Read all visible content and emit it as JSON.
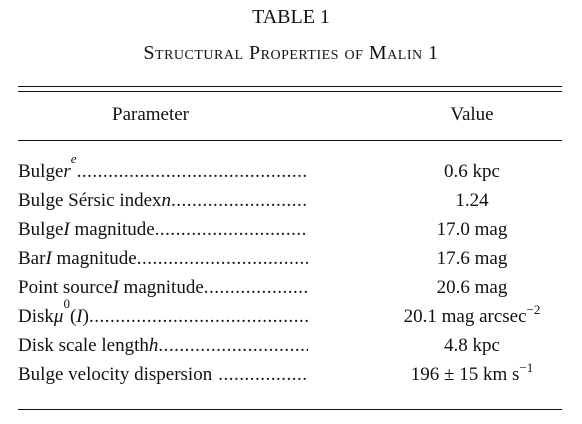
{
  "table": {
    "title": "TABLE 1",
    "subtitle": "Structural Properties of Malin 1",
    "header": [
      "Parameter",
      "Value"
    ],
    "rows": [
      [
        [
          "Bulge ",
          "r",
          "e"
        ],
        [
          "0.6 kpc"
        ]
      ],
      [
        [
          "Bulge Sérsic index ",
          "n"
        ],
        [
          "1.24"
        ]
      ],
      [
        [
          "Bulge ",
          "I",
          " magnitude"
        ],
        [
          "17.0 mag"
        ]
      ],
      [
        [
          "Bar ",
          "I",
          " magnitude"
        ],
        [
          "17.6 mag"
        ]
      ],
      [
        [
          "Point source ",
          "I",
          " magnitude"
        ],
        [
          "20.6 mag"
        ]
      ],
      [
        [
          "Disk ",
          "μ",
          "0",
          "(",
          "I",
          ")"
        ],
        [
          "20.1 mag arcsec",
          "−2"
        ]
      ],
      [
        [
          "Disk scale length ",
          "h"
        ],
        [
          "4.8 kpc"
        ]
      ],
      [
        [
          "Bulge velocity dispersion"
        ],
        [
          "196 ± 15 km s",
          "−1"
        ]
      ]
    ]
  }
}
